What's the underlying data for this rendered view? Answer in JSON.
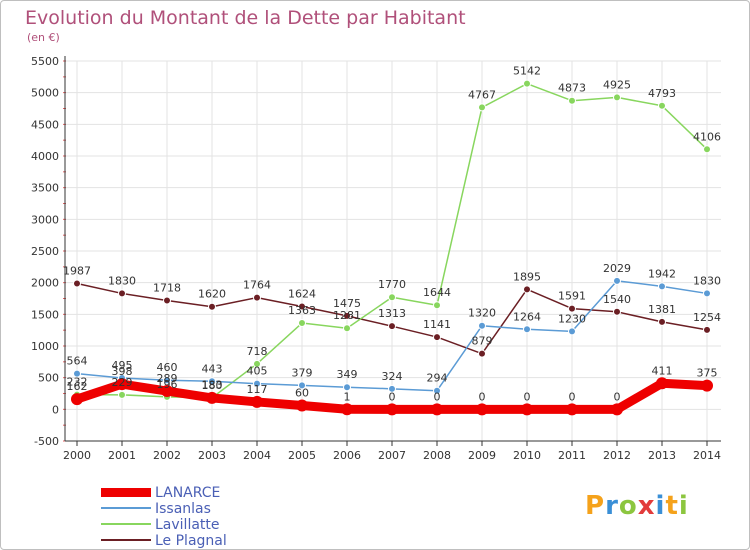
{
  "title": "Evolution du Montant de la Dette par Habitant",
  "subtitle": "(en €)",
  "logo_text": "Proxiti",
  "colors": {
    "title": "#b0507a",
    "grid": "#e3e3e3",
    "axis": "#333333",
    "legend_text": "#4a5fb5"
  },
  "chart_data": {
    "type": "line",
    "x": [
      "2000",
      "2001",
      "2002",
      "2003",
      "2004",
      "2005",
      "2006",
      "2007",
      "2008",
      "2009",
      "2010",
      "2011",
      "2012",
      "2013",
      "2014"
    ],
    "ylim": [
      -500,
      5500
    ],
    "yticks": [
      -500,
      0,
      500,
      1000,
      1500,
      2000,
      2500,
      3000,
      3500,
      4000,
      4500,
      5000,
      5500
    ],
    "grid": true,
    "legend_position": "bottom-left",
    "series": [
      {
        "name": "Le Plagnal",
        "color": "#6b1f24",
        "width": 1.5,
        "values": [
          1987,
          1830,
          1718,
          1620,
          1764,
          1624,
          1475,
          1313,
          1141,
          879,
          1895,
          1591,
          1540,
          1381,
          1254
        ],
        "labels": [
          "1987",
          "1830",
          "1718",
          "1620",
          "1764",
          "1624",
          "1475",
          "1313",
          "1141",
          "879",
          "1895",
          "1591",
          "1540",
          "1381",
          "1254"
        ]
      },
      {
        "name": "Lavillatte",
        "color": "#88d65e",
        "width": 1.5,
        "values": [
          232,
          229,
          196,
          183,
          718,
          1363,
          1281,
          1770,
          1644,
          4767,
          5142,
          4873,
          4925,
          4793,
          4106
        ],
        "labels": [
          "232",
          "229",
          "196",
          "183",
          "718",
          "1363",
          "1281",
          "1770",
          "1644",
          "4767",
          "5142",
          "4873",
          "4925",
          "4793",
          "4106"
        ]
      },
      {
        "name": "Issanlas",
        "color": "#5b9bd5",
        "width": 1.5,
        "values": [
          564,
          495,
          460,
          443,
          405,
          379,
          349,
          324,
          294,
          1320,
          1264,
          1230,
          2029,
          1942,
          1830
        ],
        "labels": [
          "564",
          "495",
          "460",
          "443",
          "405",
          "379",
          "349",
          "324",
          "294",
          "1320",
          "1264",
          "1230",
          "2029",
          "1942",
          "1830"
        ]
      },
      {
        "name": "LANARCE",
        "color": "#ee0000",
        "width": 9,
        "values": [
          162,
          398,
          289,
          180,
          117,
          60,
          1,
          0,
          0,
          0,
          0,
          0,
          0,
          411,
          375
        ],
        "labels": [
          "162",
          "398",
          "289",
          "180",
          "117",
          "60",
          "1",
          "0",
          "0",
          "0",
          "0",
          "0",
          "0",
          "411",
          "375"
        ]
      }
    ],
    "legend_order": [
      "LANARCE",
      "Issanlas",
      "Lavillatte",
      "Le Plagnal"
    ]
  }
}
